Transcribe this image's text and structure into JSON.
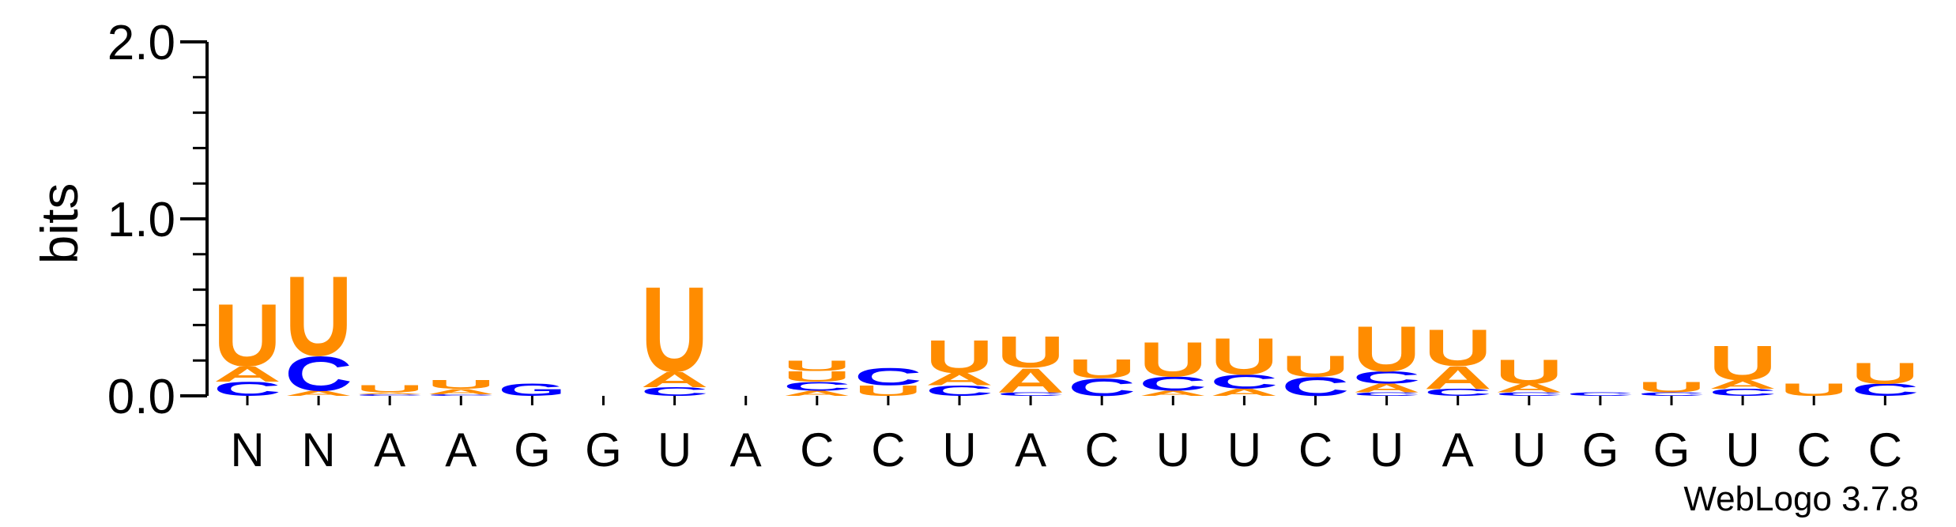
{
  "chart_data": {
    "type": "sequence-logo",
    "ylabel": "bits",
    "ylim": [
      0,
      2.0
    ],
    "yticks": [
      "0.0",
      "1.0",
      "2.0"
    ],
    "credit": "WebLogo 3.7.8",
    "positions": [
      "N",
      "N",
      "A",
      "A",
      "G",
      "G",
      "U",
      "A",
      "C",
      "C",
      "U",
      "A",
      "C",
      "U",
      "U",
      "C",
      "U",
      "A",
      "U",
      "G",
      "G",
      "U",
      "C",
      "C"
    ],
    "colors": {
      "U": "#ff8c00",
      "A": "#ff8c00",
      "C": "#0000ff",
      "G": "#0000ff"
    },
    "stacks": [
      [
        [
          "C",
          0.08
        ],
        [
          "A",
          0.09
        ],
        [
          "U",
          0.36
        ]
      ],
      [
        [
          "A",
          0.03
        ],
        [
          "C",
          0.2
        ],
        [
          "U",
          0.46
        ]
      ],
      [
        [
          "C",
          0.01
        ],
        [
          "A",
          0.01
        ],
        [
          "U",
          0.04
        ]
      ],
      [
        [
          "C",
          0.01
        ],
        [
          "A",
          0.03
        ],
        [
          "U",
          0.05
        ]
      ],
      [
        [
          "G",
          0.07
        ]
      ],
      [],
      [
        [
          "C",
          0.05
        ],
        [
          "A",
          0.09
        ],
        [
          "U",
          0.49
        ]
      ],
      [],
      [
        [
          "A",
          0.03
        ],
        [
          "C",
          0.05
        ],
        [
          "U",
          0.06
        ],
        [
          "U",
          0.06
        ]
      ],
      [
        [
          "U",
          0.06
        ],
        [
          "C",
          0.1
        ]
      ],
      [
        [
          "C",
          0.06
        ],
        [
          "A",
          0.07
        ],
        [
          "U",
          0.19
        ]
      ],
      [
        [
          "C",
          0.02
        ],
        [
          "A",
          0.14
        ],
        [
          "U",
          0.18
        ]
      ],
      [
        [
          "C",
          0.1
        ],
        [
          "U",
          0.11
        ]
      ],
      [
        [
          "A",
          0.03
        ],
        [
          "C",
          0.08
        ],
        [
          "U",
          0.2
        ]
      ],
      [
        [
          "A",
          0.04
        ],
        [
          "C",
          0.08
        ],
        [
          "U",
          0.21
        ]
      ],
      [
        [
          "C",
          0.11
        ],
        [
          "U",
          0.12
        ]
      ],
      [
        [
          "C",
          0.02
        ],
        [
          "A",
          0.05
        ],
        [
          "C",
          0.07
        ],
        [
          "U",
          0.26
        ]
      ],
      [
        [
          "C",
          0.04
        ],
        [
          "A",
          0.13
        ],
        [
          "U",
          0.21
        ]
      ],
      [
        [
          "C",
          0.02
        ],
        [
          "A",
          0.05
        ],
        [
          "U",
          0.14
        ]
      ],
      [
        [
          "C",
          0.02
        ]
      ],
      [
        [
          "C",
          0.02
        ],
        [
          "U",
          0.06
        ]
      ],
      [
        [
          "C",
          0.04
        ],
        [
          "A",
          0.05
        ],
        [
          "U",
          0.2
        ]
      ],
      [
        [
          "U",
          0.07
        ]
      ],
      [
        [
          "C",
          0.07
        ],
        [
          "U",
          0.12
        ]
      ]
    ]
  }
}
